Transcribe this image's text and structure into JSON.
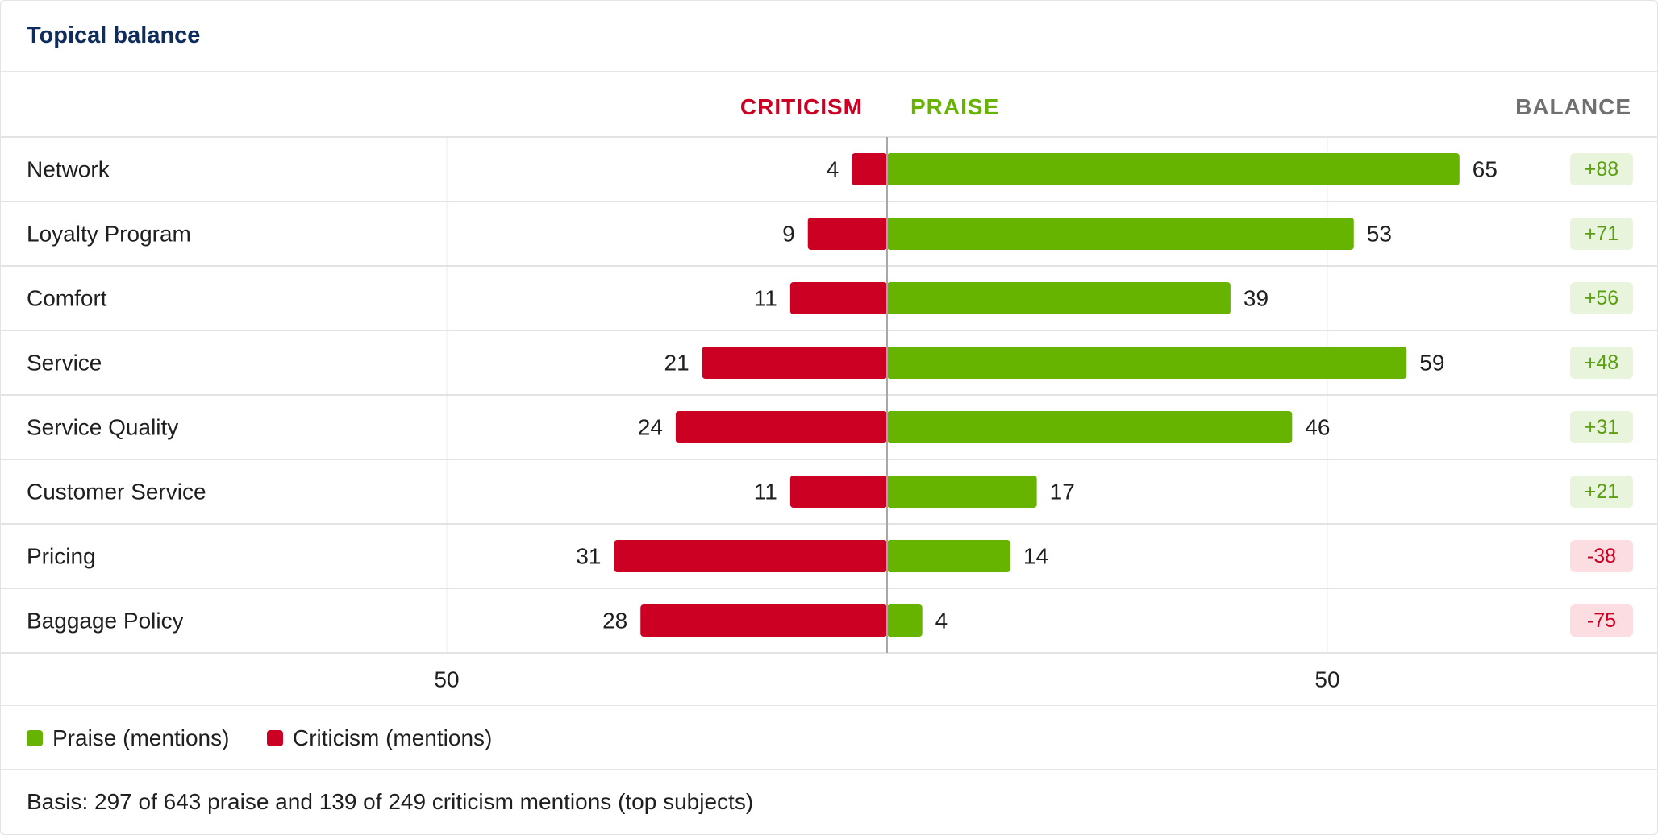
{
  "card": {
    "title": "Topical balance"
  },
  "columns": {
    "criticism": "CRITICISM",
    "praise": "PRAISE",
    "balance": "BALANCE"
  },
  "colors": {
    "praise": "#66b300",
    "criticism": "#cc0022",
    "positive_badge_bg": "#e8f4dc",
    "positive_badge_text": "#5a9e12",
    "negative_badge_bg": "#fbdde2",
    "negative_badge_text": "#cc0022"
  },
  "legend": {
    "praise": "Praise (mentions)",
    "criticism": "Criticism (mentions)"
  },
  "footnote": "Basis: 297 of 643 praise and 139 of 249 criticism mentions (top subjects)",
  "chart_data": {
    "type": "bar",
    "orientation": "horizontal-diverging",
    "categories": [
      "Network",
      "Loyalty Program",
      "Comfort",
      "Service",
      "Service Quality",
      "Customer Service",
      "Pricing",
      "Baggage Policy"
    ],
    "series": [
      {
        "name": "Criticism (mentions)",
        "values": [
          4,
          9,
          11,
          21,
          24,
          11,
          31,
          28
        ]
      },
      {
        "name": "Praise (mentions)",
        "values": [
          65,
          53,
          39,
          59,
          46,
          17,
          14,
          4
        ]
      }
    ],
    "balance": [
      "+88",
      "+71",
      "+56",
      "+48",
      "+31",
      "+21",
      "-38",
      "-75"
    ],
    "x_ticks": [
      {
        "value": -50,
        "label": "50"
      },
      {
        "value": 50,
        "label": "50"
      }
    ],
    "xlim": [
      -50,
      50
    ],
    "grid": true,
    "legend_position": "bottom-left"
  }
}
